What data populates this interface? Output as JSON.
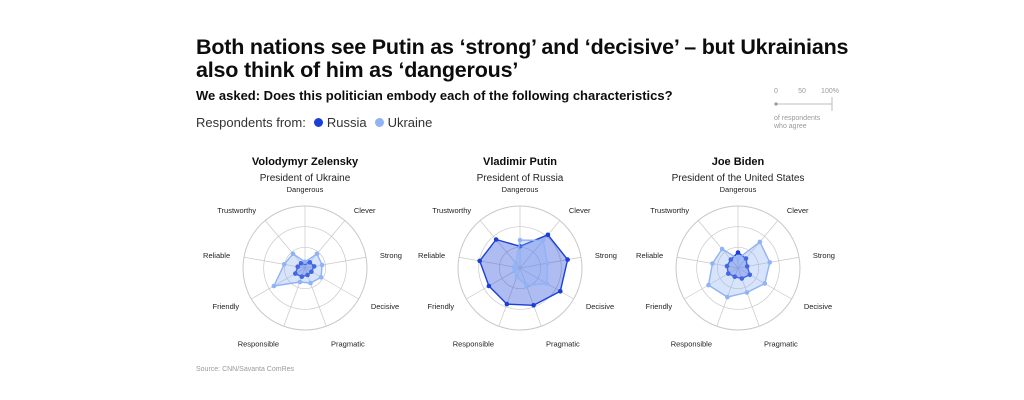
{
  "title": "Both nations see Putin as ‘strong’ and ‘decisive’ – but Ukrainians also think of him as ‘dangerous’",
  "subtitle": "We asked: Does this politician embody each of the following characteristics?",
  "legend": {
    "prefix": "Respondents from:",
    "items": [
      {
        "label": "Russia",
        "color": "#1a3fd6"
      },
      {
        "label": "Ukraine",
        "color": "#8fb3f5"
      }
    ]
  },
  "scale_key": {
    "ticks": [
      "0",
      "50",
      "100%"
    ],
    "caption_line1": "of respondents",
    "caption_line2": "who agree"
  },
  "source": "Source: CNN/Savanta ComRes",
  "colors": {
    "russia": "#1a3fd6",
    "ukraine": "#8fb3f5",
    "grid": "#c8c8c8"
  },
  "chart_data": [
    {
      "type": "radar",
      "title": "Volodymyr Zelensky",
      "subtitle": "President of Ukraine",
      "axes": [
        "Dangerous",
        "Clever",
        "Strong",
        "Decisive",
        "Pragmatic",
        "Responsible",
        "Friendly",
        "Reliable",
        "Trustworthy"
      ],
      "range": [
        0,
        100
      ],
      "series": [
        {
          "name": "Russia",
          "values": [
            8,
            12,
            15,
            12,
            12,
            15,
            18,
            12,
            10
          ]
        },
        {
          "name": "Ukraine",
          "values": [
            10,
            30,
            28,
            30,
            26,
            24,
            58,
            34,
            30
          ]
        }
      ]
    },
    {
      "type": "radar",
      "title": "Vladimir Putin",
      "subtitle": "President of Russia",
      "axes": [
        "Dangerous",
        "Clever",
        "Strong",
        "Decisive",
        "Pragmatic",
        "Responsible",
        "Friendly",
        "Reliable",
        "Trustworthy"
      ],
      "range": [
        0,
        100
      ],
      "series": [
        {
          "name": "Russia",
          "values": [
            35,
            70,
            78,
            75,
            64,
            62,
            58,
            66,
            60
          ]
        },
        {
          "name": "Ukraine",
          "values": [
            45,
            58,
            45,
            50,
            30,
            15,
            10,
            10,
            10
          ]
        }
      ]
    },
    {
      "type": "radar",
      "title": "Joe Biden",
      "subtitle": "President of the United States",
      "axes": [
        "Dangerous",
        "Clever",
        "Strong",
        "Decisive",
        "Pragmatic",
        "Responsible",
        "Friendly",
        "Reliable",
        "Trustworthy"
      ],
      "range": [
        0,
        100
      ],
      "series": [
        {
          "name": "Russia",
          "values": [
            25,
            20,
            15,
            22,
            18,
            15,
            18,
            18,
            18
          ]
        },
        {
          "name": "Ukraine",
          "values": [
            15,
            55,
            52,
            50,
            42,
            50,
            55,
            42,
            40
          ]
        }
      ]
    }
  ]
}
